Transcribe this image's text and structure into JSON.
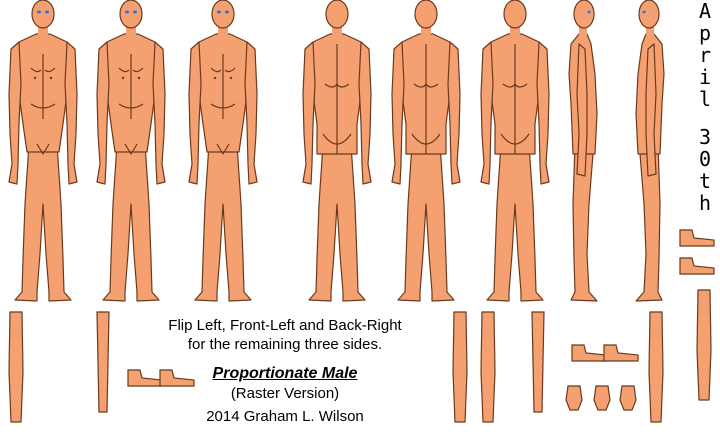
{
  "caption": {
    "instructions_line1": "Flip Left, Front-Left and Back-Right",
    "instructions_line2": "for the remaining three sides.",
    "title": "Proportionate Male",
    "subtitle": "(Raster Version)",
    "credit": "2014 Graham L. Wilson"
  },
  "side_label": {
    "chars": [
      "A",
      "p",
      "r",
      "i",
      "l",
      "",
      "3",
      "0",
      "t",
      "h"
    ]
  },
  "colors": {
    "skin": "#F4A070",
    "outline": "#6b3a1e",
    "eye": "#3a6fd8",
    "background": "#ffffff"
  },
  "figures": [
    {
      "view": "front"
    },
    {
      "view": "front-left"
    },
    {
      "view": "front-right"
    },
    {
      "view": "back"
    },
    {
      "view": "back-left"
    },
    {
      "view": "back-right"
    },
    {
      "view": "side-right"
    },
    {
      "view": "side-left"
    }
  ]
}
